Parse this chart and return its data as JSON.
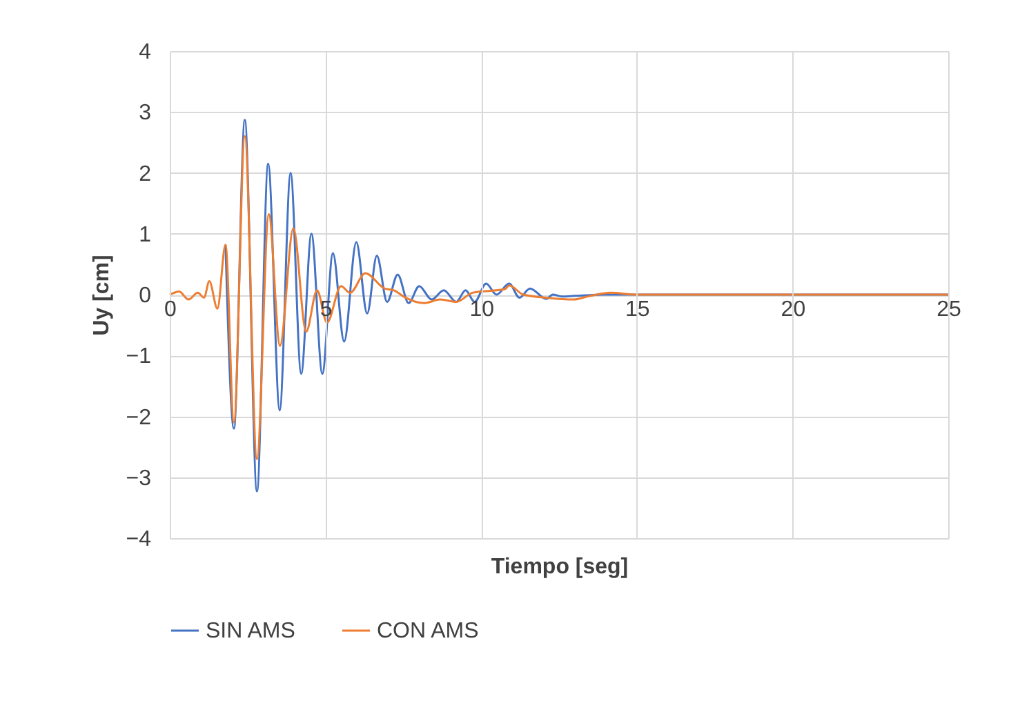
{
  "chart_data": {
    "type": "line",
    "xlabel": "Tiempo [seg]",
    "ylabel": "Uy [cm]",
    "xlim": [
      0,
      25
    ],
    "xticks": [
      0,
      5,
      10,
      15,
      20,
      25
    ],
    "ylim": [
      -4,
      4
    ],
    "yticks": [
      -4,
      -3,
      -2,
      -1,
      0,
      1,
      2,
      3,
      4
    ],
    "grid": true,
    "legend": "bottom",
    "marker": "none",
    "line_style": "solid",
    "series": [
      {
        "name": "SIN AMS",
        "color": "#4472c4",
        "x": [
          1.79,
          2.06,
          2.41,
          2.8,
          3.16,
          3.53,
          3.88,
          4.22,
          4.55,
          4.9,
          5.24,
          5.6,
          5.99,
          6.34,
          6.65,
          6.98,
          7.32,
          7.67,
          8.01,
          8.41,
          8.8,
          9.2,
          9.5,
          9.79,
          10.16,
          10.49,
          10.9,
          11.23,
          11.57,
          12.09,
          12.3,
          12.6,
          13,
          14,
          25
        ],
        "values": [
          0.82,
          -2.2,
          2.87,
          -3.23,
          2.15,
          -1.9,
          2.0,
          -1.3,
          1.0,
          -1.3,
          0.68,
          -0.77,
          0.86,
          -0.31,
          0.64,
          -0.12,
          0.33,
          -0.14,
          0.14,
          -0.08,
          0.07,
          -0.12,
          0.07,
          -0.12,
          0.18,
          0,
          0.18,
          -0.05,
          0.1,
          -0.07,
          0,
          -0.03,
          -0.02,
          0,
          0
        ]
      },
      {
        "name": "CON AMS",
        "color": "#ed7d31",
        "x": [
          0,
          0.3,
          0.6,
          0.9,
          1.1,
          1.27,
          1.53,
          1.79,
          2.06,
          2.41,
          2.8,
          3.18,
          3.54,
          3.97,
          4.38,
          4.73,
          5.05,
          5.5,
          5.79,
          6.28,
          6.9,
          7.2,
          7.57,
          8.16,
          8.68,
          9.2,
          9.72,
          10.76,
          10.9,
          11.35,
          12.09,
          12.98,
          13.43,
          14.16,
          15,
          25
        ],
        "values": [
          0,
          0.05,
          -0.08,
          0.03,
          -0.05,
          0.22,
          -0.23,
          0.82,
          -2.1,
          2.6,
          -2.7,
          1.32,
          -0.84,
          1.09,
          -0.61,
          0.07,
          -0.46,
          0.14,
          0.03,
          0.35,
          0.1,
          0.07,
          -0.05,
          -0.14,
          -0.08,
          -0.12,
          0.03,
          0.09,
          0.15,
          0,
          -0.05,
          -0.08,
          -0.03,
          0.03,
          0,
          0
        ]
      }
    ]
  }
}
